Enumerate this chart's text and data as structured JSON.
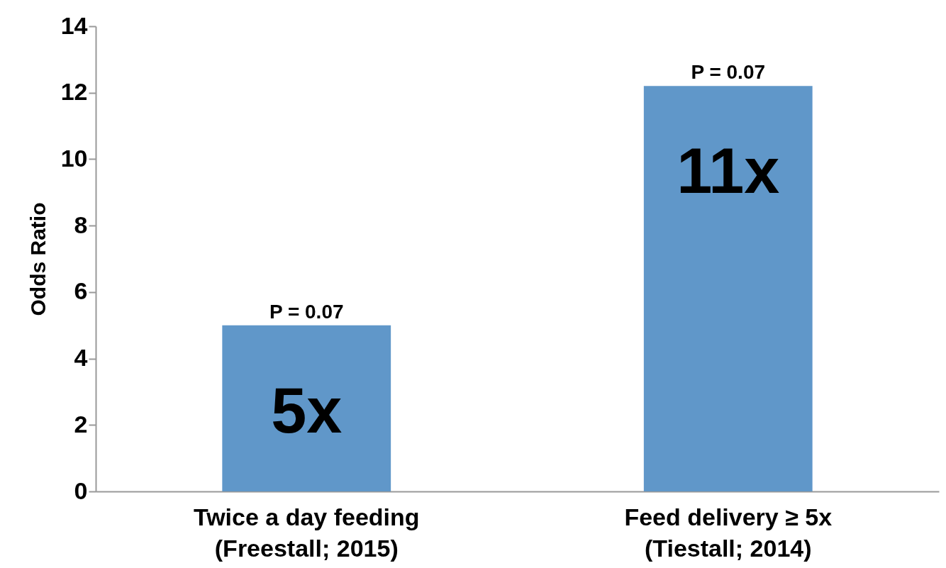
{
  "chart_data": {
    "type": "bar",
    "ylabel": "Odds Ratio",
    "categories": [
      "Twice a day feeding\n(Freestall; 2015)",
      "Feed delivery ≥ 5x\n(Tiestall; 2014)"
    ],
    "values": [
      5,
      12.2
    ],
    "color": "#6097c9",
    "ylim": [
      0,
      14
    ],
    "yticks": [
      0,
      2,
      4,
      6,
      8,
      10,
      12,
      14
    ],
    "grid": false,
    "annotations": [
      {
        "text": "P = 0.07",
        "x": "Twice a day feeding\n(Freestall; 2015)",
        "y": 5
      },
      {
        "text": "P = 0.07",
        "x": "Feed delivery ≥ 5x\n(Tiestall; 2014)",
        "y": 12.2
      },
      "5x",
      "11x"
    ]
  }
}
